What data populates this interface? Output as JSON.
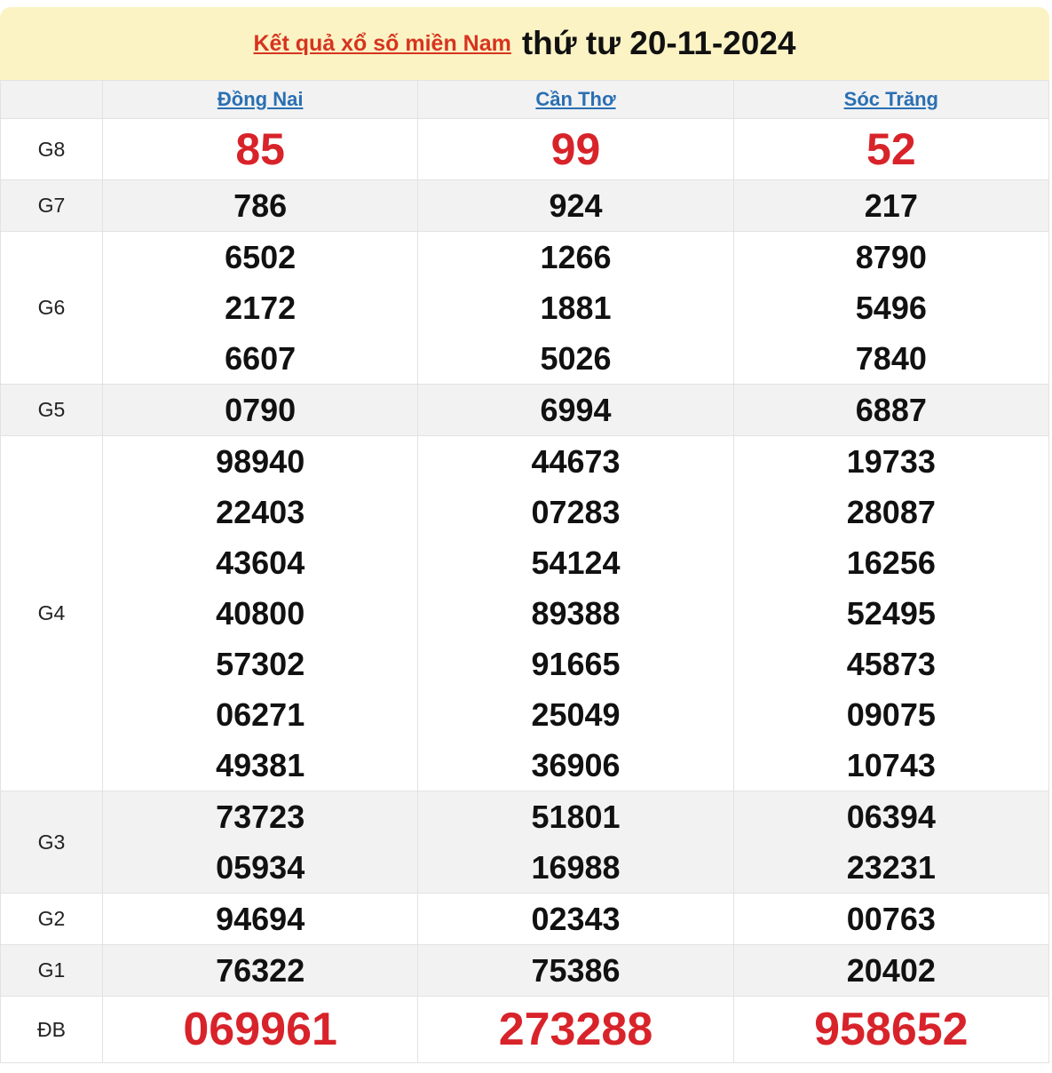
{
  "title": {
    "link_text": "Kết quả xổ số miền Nam",
    "date_text": "thứ tư 20-11-2024"
  },
  "provinces": [
    "Đồng Nai",
    "Cần Thơ",
    "Sóc Trăng"
  ],
  "prizes": [
    {
      "label": "G8",
      "results": [
        [
          "85"
        ],
        [
          "99"
        ],
        [
          "52"
        ]
      ]
    },
    {
      "label": "G7",
      "results": [
        [
          "786"
        ],
        [
          "924"
        ],
        [
          "217"
        ]
      ]
    },
    {
      "label": "G6",
      "results": [
        [
          "6502",
          "2172",
          "6607"
        ],
        [
          "1266",
          "1881",
          "5026"
        ],
        [
          "8790",
          "5496",
          "7840"
        ]
      ]
    },
    {
      "label": "G5",
      "results": [
        [
          "0790"
        ],
        [
          "6994"
        ],
        [
          "6887"
        ]
      ]
    },
    {
      "label": "G4",
      "results": [
        [
          "98940",
          "22403",
          "43604",
          "40800",
          "57302",
          "06271",
          "49381"
        ],
        [
          "44673",
          "07283",
          "54124",
          "89388",
          "91665",
          "25049",
          "36906"
        ],
        [
          "19733",
          "28087",
          "16256",
          "52495",
          "45873",
          "09075",
          "10743"
        ]
      ]
    },
    {
      "label": "G3",
      "results": [
        [
          "73723",
          "05934"
        ],
        [
          "51801",
          "16988"
        ],
        [
          "06394",
          "23231"
        ]
      ]
    },
    {
      "label": "G2",
      "results": [
        [
          "94694"
        ],
        [
          "02343"
        ],
        [
          "00763"
        ]
      ]
    },
    {
      "label": "G1",
      "results": [
        [
          "76322"
        ],
        [
          "75386"
        ],
        [
          "20402"
        ]
      ]
    },
    {
      "label": "ĐB",
      "results": [
        [
          "069961"
        ],
        [
          "273288"
        ],
        [
          "958652"
        ]
      ]
    }
  ],
  "colors": {
    "header_bg": "#fbf3c4",
    "title_link": "#d6341f",
    "province_link": "#2a6fb3",
    "highlight_number": "#d8232a",
    "alt_row": "#f2f2f2"
  }
}
